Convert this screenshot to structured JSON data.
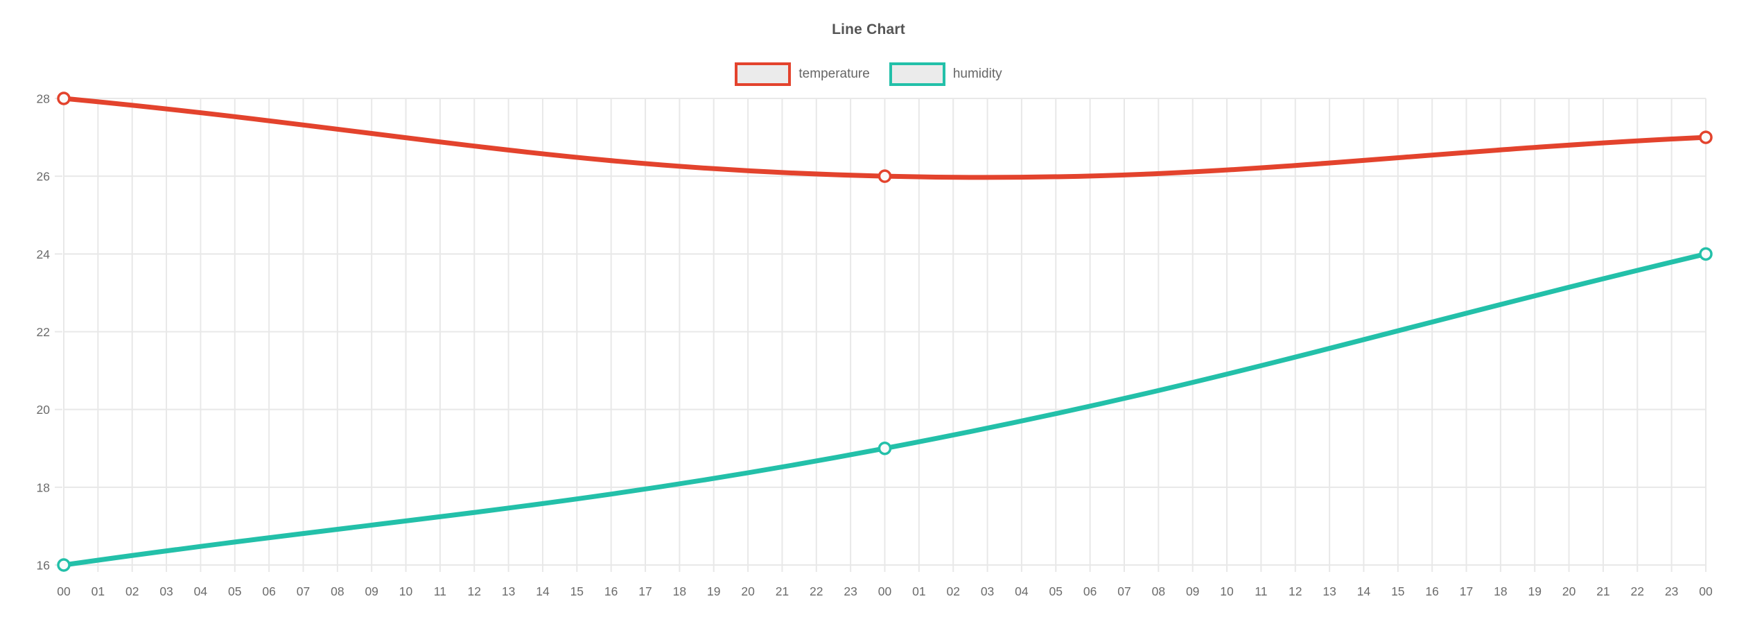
{
  "chart_data": {
    "type": "line",
    "title": "Line Chart",
    "x_labels": [
      "00",
      "01",
      "02",
      "03",
      "04",
      "05",
      "06",
      "07",
      "08",
      "09",
      "10",
      "11",
      "12",
      "13",
      "14",
      "15",
      "16",
      "17",
      "18",
      "19",
      "20",
      "21",
      "22",
      "23",
      "00",
      "01",
      "02",
      "03",
      "04",
      "05",
      "06",
      "07",
      "08",
      "09",
      "10",
      "11",
      "12",
      "13",
      "14",
      "15",
      "16",
      "17",
      "18",
      "19",
      "20",
      "21",
      "22",
      "23",
      "00"
    ],
    "y_ticks": [
      28,
      26,
      24,
      22,
      20,
      18,
      16
    ],
    "ylim": [
      16,
      28
    ],
    "grid": true,
    "legend_position": "top",
    "series": [
      {
        "name": "temperature",
        "color": "#e3432d",
        "point_style": "open-circle",
        "x_indices": [
          0,
          24,
          48
        ],
        "values": [
          28,
          26,
          27
        ]
      },
      {
        "name": "humidity",
        "color": "#23c0a9",
        "point_style": "open-circle",
        "x_indices": [
          0,
          24,
          48
        ],
        "values": [
          16,
          19,
          24
        ]
      }
    ],
    "colors": {
      "legend_swatch_fill": "#ebebeb",
      "grid": "#e8e8e8",
      "tick_label": "#6b6b6b",
      "title": "#555555",
      "point_fill": "#fafafa",
      "background": "#ffffff"
    }
  }
}
